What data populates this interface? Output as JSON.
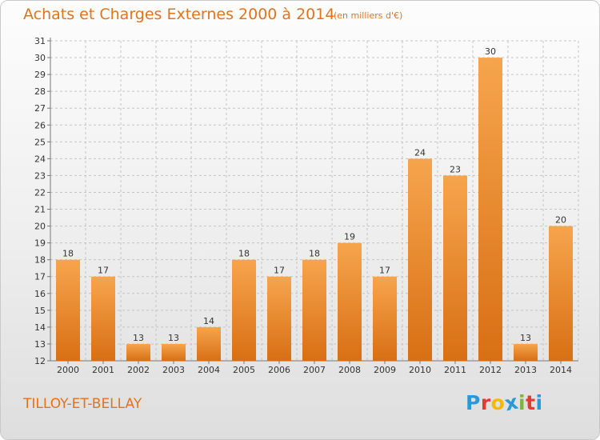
{
  "header": {
    "title": "Achats et Charges Externes 2000 à 2014",
    "subtitle": "(en milliers d'€)"
  },
  "footer": {
    "place": "TILLOY-ET-BELLAY",
    "logo_text": "Proxiti",
    "logo_colors": [
      "#2a9ad6",
      "#e53935",
      "#f5b800",
      "#2a9ad6",
      "#7cb342",
      "#e53935",
      "#2a9ad6"
    ]
  },
  "colors": {
    "text_accent": "#e0731e",
    "bar_light": "#f6a54d",
    "bar_dark": "#d86f14",
    "grid": "#c4c4c4",
    "axis_text": "#333333"
  },
  "chart_data": {
    "type": "bar",
    "categories": [
      "2000",
      "2001",
      "2002",
      "2003",
      "2004",
      "2005",
      "2006",
      "2007",
      "2008",
      "2009",
      "2010",
      "2011",
      "2012",
      "2013",
      "2014"
    ],
    "values": [
      18,
      17,
      13,
      13,
      14,
      18,
      17,
      18,
      19,
      17,
      24,
      23,
      30,
      13,
      20
    ],
    "ylim": [
      12,
      31
    ],
    "yticks": [
      12,
      13,
      14,
      15,
      16,
      17,
      18,
      19,
      20,
      21,
      22,
      23,
      24,
      25,
      26,
      27,
      28,
      29,
      30,
      31
    ],
    "grid": true,
    "legend": "none"
  }
}
